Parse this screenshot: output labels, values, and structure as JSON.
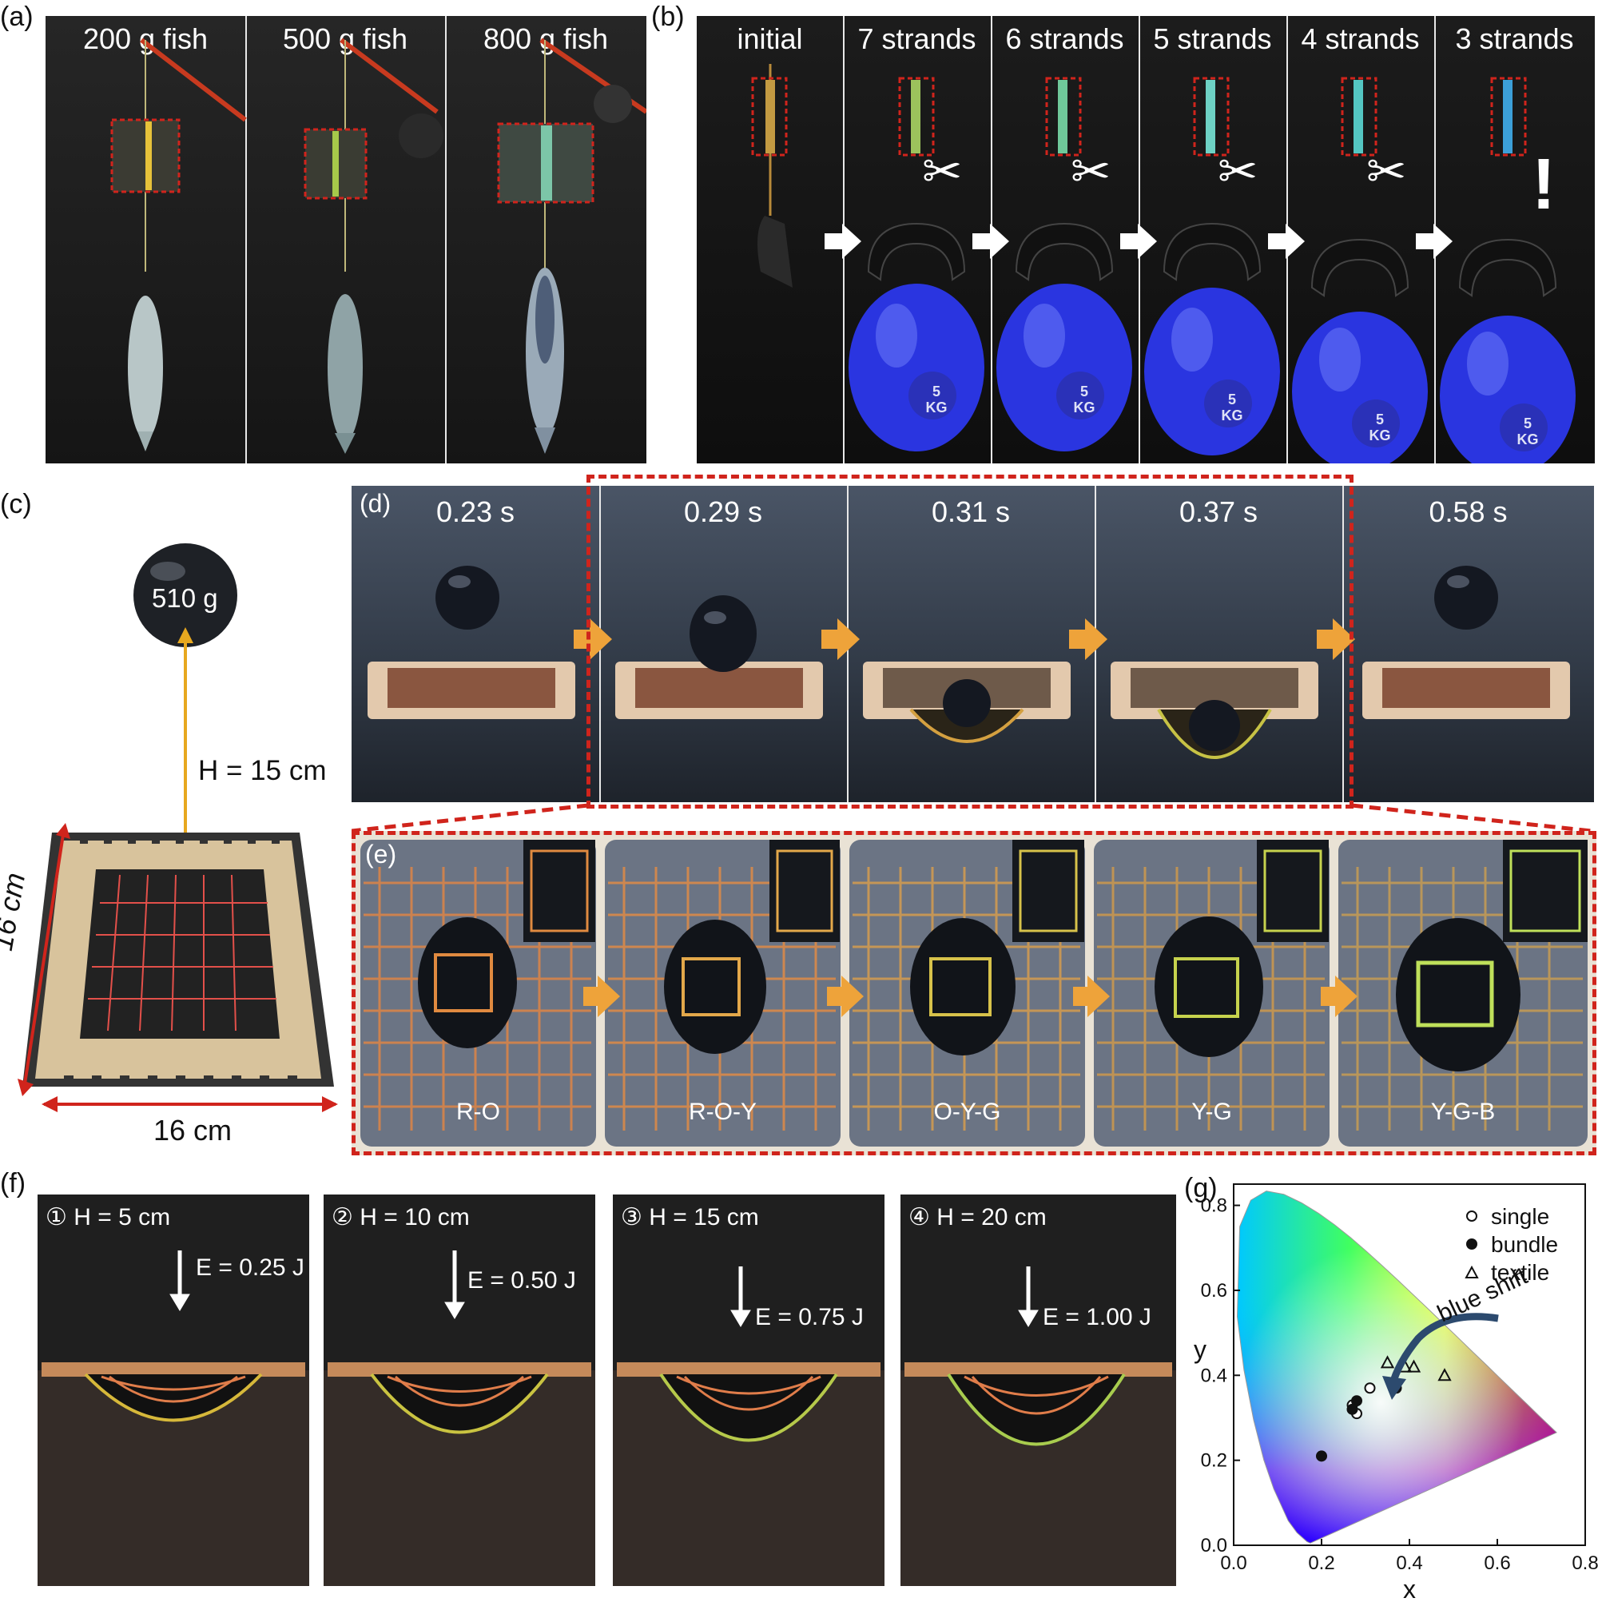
{
  "panels": {
    "a": {
      "label": "(a)",
      "captions": [
        "200 g fish",
        "500 g fish",
        "800 g fish"
      ]
    },
    "b": {
      "label": "(b)",
      "captions": [
        "initial",
        "7 strands",
        "6 strands",
        "5 strands",
        "4 strands",
        "3 strands"
      ],
      "weight": "5",
      "weight_unit": "KG",
      "alert": "!"
    },
    "c": {
      "label": "(c)",
      "ball_mass": "510 g",
      "height": "H = 15 cm",
      "side_left": "16 cm",
      "side_bottom": "16 cm"
    },
    "d": {
      "label": "(d)",
      "times": [
        "0.23 s",
        "0.29 s",
        "0.31 s",
        "0.37 s",
        "0.58 s"
      ]
    },
    "e": {
      "label": "(e)",
      "colors": [
        "R-O",
        "R-O-Y",
        "O-Y-G",
        "Y-G",
        "Y-G-B"
      ]
    },
    "f": {
      "label": "(f)",
      "heights": [
        "① H = 5 cm",
        "② H = 10 cm",
        "③ H = 15 cm",
        "④ H = 20 cm"
      ],
      "energies": [
        "E = 0.25 J",
        "E = 0.50 J",
        "E = 0.75 J",
        "E = 1.00 J"
      ]
    },
    "g": {
      "label": "(g)"
    }
  },
  "chart_data": {
    "type": "scatter",
    "xlabel": "x",
    "ylabel": "y",
    "xlim": [
      0.0,
      0.8
    ],
    "ylim": [
      0.0,
      0.85
    ],
    "xticks": [
      "0.0",
      "0.2",
      "0.4",
      "0.6",
      "0.8"
    ],
    "yticks": [
      "0.0",
      "0.2",
      "0.4",
      "0.6",
      "0.8"
    ],
    "annotation": "blue shift",
    "legend_position": "top-right",
    "series": [
      {
        "name": "single",
        "marker": "open-circle",
        "points": [
          [
            0.31,
            0.37
          ],
          [
            0.28,
            0.31
          ],
          [
            0.27,
            0.33
          ]
        ]
      },
      {
        "name": "bundle",
        "marker": "filled-circle",
        "points": [
          [
            0.37,
            0.37
          ],
          [
            0.28,
            0.34
          ],
          [
            0.27,
            0.32
          ],
          [
            0.2,
            0.21
          ]
        ]
      },
      {
        "name": "textile",
        "marker": "open-triangle",
        "points": [
          [
            0.35,
            0.43
          ],
          [
            0.39,
            0.42
          ],
          [
            0.41,
            0.42
          ],
          [
            0.48,
            0.4
          ]
        ]
      }
    ]
  }
}
